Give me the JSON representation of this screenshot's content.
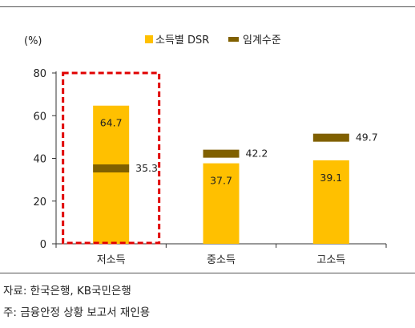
{
  "chart_data": {
    "type": "bar",
    "unit_label": "(%)",
    "categories": [
      "저소득",
      "중소득",
      "고소득"
    ],
    "series": [
      {
        "name": "소득별 DSR",
        "kind": "bar",
        "values": [
          64.7,
          37.7,
          39.1
        ]
      },
      {
        "name": "임계수준",
        "kind": "marker",
        "values": [
          35.3,
          42.2,
          49.7
        ]
      }
    ],
    "value_labels": {
      "bars": [
        "64.7",
        "37.7",
        "39.1"
      ],
      "markers": [
        "35.3",
        "42.2",
        "49.7"
      ]
    },
    "ylim": [
      0,
      80
    ],
    "yticks": [
      0,
      20,
      40,
      60,
      80
    ],
    "ytick_labels": [
      "0",
      "20",
      "40",
      "60",
      "80"
    ],
    "highlighted_category": "저소득",
    "legend_position": "top-right",
    "grid": false,
    "colors": {
      "bar": "#FFC000",
      "marker": "#806000",
      "highlight": "#E00000",
      "axis": "#333333"
    }
  },
  "notes": {
    "source": "자료: 한국은행, KB국민은행",
    "remark": "주: 금융안정 상황 보고서 재인용"
  }
}
